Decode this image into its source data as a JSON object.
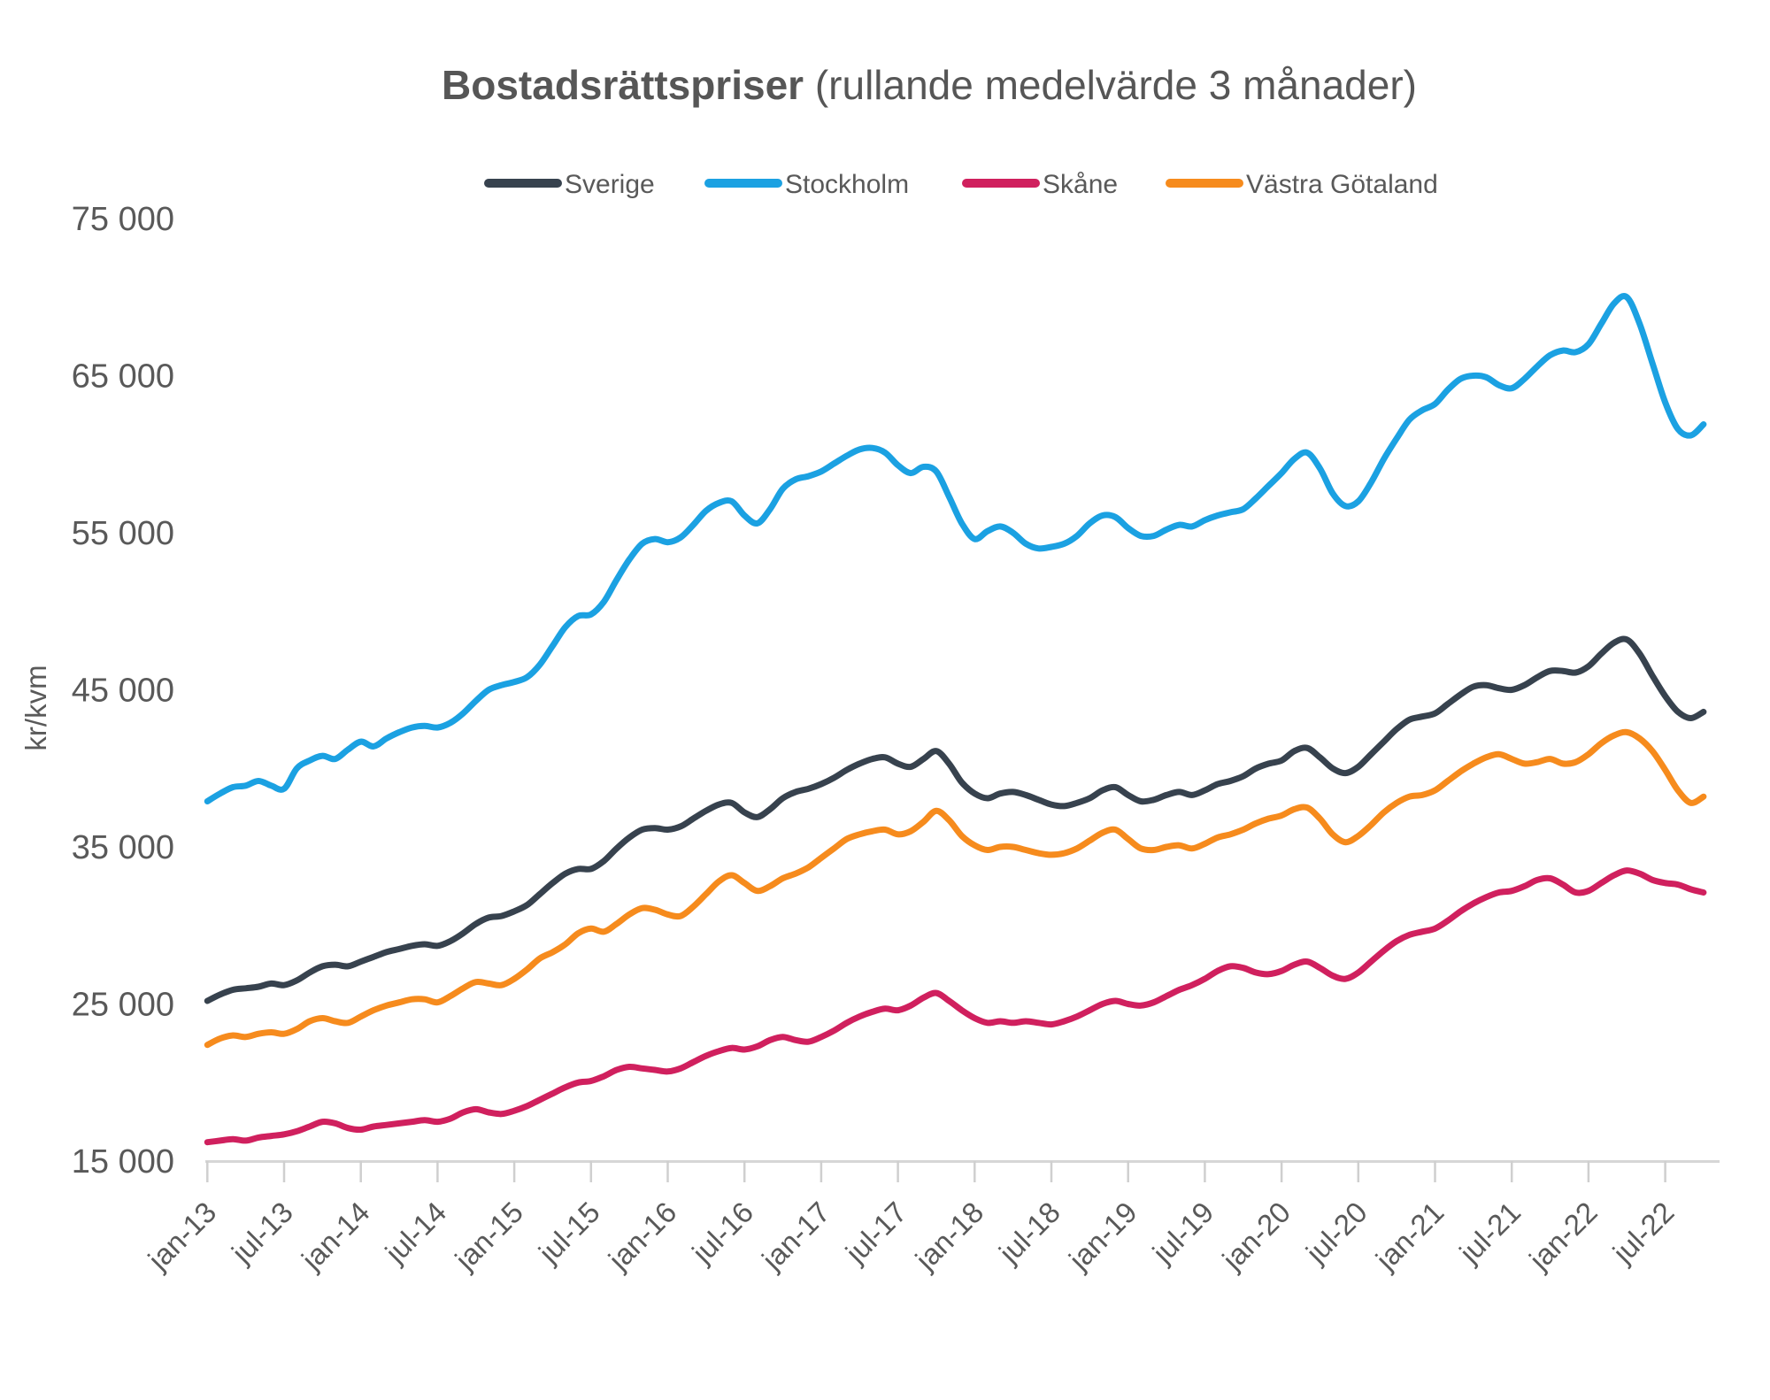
{
  "title": {
    "bold": "Bostadsrättspriser",
    "regular": " (rullande medelvärde 3 månader)"
  },
  "y_axis": {
    "unit_label": "kr/kvm",
    "tick_labels": [
      "75 000",
      "65 000",
      "55 000",
      "45 000",
      "35 000",
      "25 000",
      "15 000"
    ],
    "tick_values": [
      75000,
      65000,
      55000,
      45000,
      35000,
      25000,
      15000
    ]
  },
  "legend": [
    {
      "id": "sverige",
      "label": "Sverige",
      "color": "#37424e"
    },
    {
      "id": "stockholm",
      "label": "Stockholm",
      "color": "#1ba1e2"
    },
    {
      "id": "skane",
      "label": "Skåne",
      "color": "#d0205e"
    },
    {
      "id": "vastra-gotaland",
      "label": "Västra Götaland",
      "color": "#f68b1d"
    }
  ],
  "chart_data": {
    "type": "line",
    "title": "Bostadsrättspriser (rullande medelvärde 3 månader)",
    "ylabel": "kr/kvm",
    "ylim": [
      15000,
      75000
    ],
    "grid": false,
    "legend_position": "top",
    "x_frequency": "monthly",
    "x_start": "jan-13",
    "x_end": "okt-22",
    "x_tick_labels": [
      "jan-13",
      "jul-13",
      "jan-14",
      "jul-14",
      "jan-15",
      "jul-15",
      "jan-16",
      "jul-16",
      "jan-17",
      "jul-17",
      "jan-18",
      "jul-18",
      "jan-19",
      "jul-19",
      "jan-20",
      "jul-20",
      "jan-21",
      "jul-21",
      "jan-22",
      "jul-22"
    ],
    "series": [
      {
        "id": "stockholm",
        "name": "Stockholm",
        "color": "#1ba1e2",
        "values": [
          37900,
          38400,
          38800,
          38900,
          39200,
          38900,
          38700,
          40000,
          40500,
          40800,
          40600,
          41200,
          41700,
          41400,
          41900,
          42300,
          42600,
          42700,
          42600,
          42900,
          43500,
          44300,
          45000,
          45300,
          45500,
          45800,
          46600,
          47800,
          49000,
          49700,
          49800,
          50600,
          52000,
          53300,
          54300,
          54600,
          54400,
          54700,
          55500,
          56400,
          56900,
          57000,
          56100,
          55600,
          56500,
          57800,
          58400,
          58600,
          58900,
          59400,
          59900,
          60300,
          60400,
          60100,
          59300,
          58800,
          59200,
          58900,
          57300,
          55600,
          54600,
          55100,
          55400,
          55000,
          54300,
          54000,
          54100,
          54300,
          54800,
          55600,
          56100,
          56000,
          55300,
          54800,
          54800,
          55200,
          55500,
          55400,
          55800,
          56100,
          56300,
          56500,
          57200,
          58000,
          58800,
          59700,
          60100,
          59100,
          57500,
          56700,
          57000,
          58200,
          59700,
          61000,
          62200,
          62800,
          63200,
          64100,
          64800,
          65000,
          64900,
          64400,
          64200,
          64800,
          65600,
          66300,
          66600,
          66500,
          67000,
          68300,
          69600,
          70000,
          68300,
          65800,
          63300,
          61600,
          61200,
          61900
        ]
      },
      {
        "id": "sverige",
        "name": "Sverige",
        "color": "#37424e",
        "values": [
          25200,
          25600,
          25900,
          26000,
          26100,
          26300,
          26200,
          26500,
          27000,
          27400,
          27500,
          27400,
          27700,
          28000,
          28300,
          28500,
          28700,
          28800,
          28700,
          29000,
          29500,
          30100,
          30500,
          30600,
          30900,
          31300,
          32000,
          32700,
          33300,
          33600,
          33600,
          34100,
          34900,
          35600,
          36100,
          36200,
          36100,
          36300,
          36800,
          37300,
          37700,
          37800,
          37200,
          36900,
          37400,
          38100,
          38500,
          38700,
          39000,
          39400,
          39900,
          40300,
          40600,
          40700,
          40300,
          40100,
          40600,
          41100,
          40300,
          39100,
          38400,
          38100,
          38400,
          38500,
          38300,
          38000,
          37700,
          37600,
          37800,
          38100,
          38600,
          38800,
          38300,
          37900,
          38000,
          38300,
          38500,
          38300,
          38600,
          39000,
          39200,
          39500,
          40000,
          40300,
          40500,
          41100,
          41300,
          40700,
          40000,
          39700,
          40100,
          40900,
          41700,
          42500,
          43100,
          43300,
          43500,
          44100,
          44700,
          45200,
          45300,
          45100,
          45000,
          45300,
          45800,
          46200,
          46200,
          46100,
          46500,
          47300,
          48000,
          48200,
          47300,
          45900,
          44600,
          43600,
          43200,
          43600
        ]
      },
      {
        "id": "vastra-gotaland",
        "name": "Västra Götaland",
        "color": "#f68b1d",
        "values": [
          22400,
          22800,
          23000,
          22900,
          23100,
          23200,
          23100,
          23400,
          23900,
          24100,
          23900,
          23800,
          24200,
          24600,
          24900,
          25100,
          25300,
          25300,
          25100,
          25500,
          26000,
          26400,
          26300,
          26200,
          26600,
          27200,
          27900,
          28300,
          28800,
          29500,
          29800,
          29600,
          30100,
          30700,
          31100,
          31000,
          30700,
          30600,
          31200,
          32000,
          32800,
          33200,
          32700,
          32200,
          32500,
          33000,
          33300,
          33700,
          34300,
          34900,
          35500,
          35800,
          36000,
          36100,
          35800,
          36000,
          36600,
          37300,
          36700,
          35700,
          35100,
          34800,
          35000,
          35000,
          34800,
          34600,
          34500,
          34600,
          34900,
          35400,
          35900,
          36100,
          35500,
          34900,
          34800,
          35000,
          35100,
          34900,
          35200,
          35600,
          35800,
          36100,
          36500,
          36800,
          37000,
          37400,
          37500,
          36800,
          35800,
          35300,
          35700,
          36400,
          37200,
          37800,
          38200,
          38300,
          38600,
          39200,
          39800,
          40300,
          40700,
          40900,
          40600,
          40300,
          40400,
          40600,
          40300,
          40400,
          40900,
          41600,
          42100,
          42300,
          41900,
          41100,
          39900,
          38600,
          37800,
          38200
        ]
      },
      {
        "id": "skane",
        "name": "Skåne",
        "color": "#d0205e",
        "values": [
          16200,
          16300,
          16400,
          16300,
          16500,
          16600,
          16700,
          16900,
          17200,
          17500,
          17400,
          17100,
          17000,
          17200,
          17300,
          17400,
          17500,
          17600,
          17500,
          17700,
          18100,
          18300,
          18100,
          18000,
          18200,
          18500,
          18900,
          19300,
          19700,
          20000,
          20100,
          20400,
          20800,
          21000,
          20900,
          20800,
          20700,
          20900,
          21300,
          21700,
          22000,
          22200,
          22100,
          22300,
          22700,
          22900,
          22700,
          22600,
          22900,
          23300,
          23800,
          24200,
          24500,
          24700,
          24600,
          24900,
          25400,
          25700,
          25200,
          24600,
          24100,
          23800,
          23900,
          23800,
          23900,
          23800,
          23700,
          23900,
          24200,
          24600,
          25000,
          25200,
          25000,
          24900,
          25100,
          25500,
          25900,
          26200,
          26600,
          27100,
          27400,
          27300,
          27000,
          26900,
          27100,
          27500,
          27700,
          27300,
          26800,
          26600,
          27000,
          27700,
          28400,
          29000,
          29400,
          29600,
          29800,
          30300,
          30900,
          31400,
          31800,
          32100,
          32200,
          32500,
          32900,
          33000,
          32600,
          32100,
          32200,
          32700,
          33200,
          33500,
          33300,
          32900,
          32700,
          32600,
          32300,
          32100
        ]
      }
    ]
  }
}
